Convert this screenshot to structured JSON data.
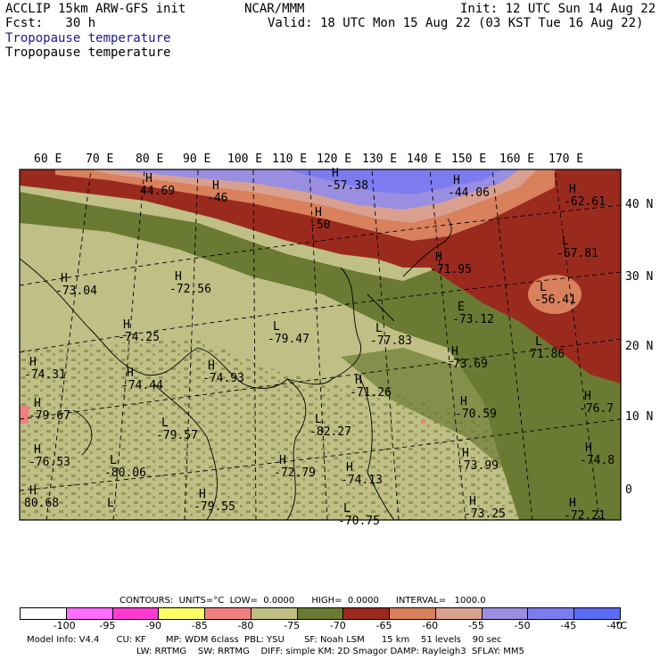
{
  "header": {
    "title": "ACCLIP 15km ARW-GFS init",
    "forecast": "Fcst:   30 h",
    "field_line1": "Tropopause temperature",
    "field_line2": "Tropopause temperature",
    "agency": "NCAR/MMM",
    "init": "Init: 12 UTC Sun 14 Aug 22",
    "valid": "Valid: 18 UTC Mon 15 Aug 22 (03 KST Tue 16 Aug 22)"
  },
  "lon_labels": [
    "60 E",
    "70 E",
    "80 E",
    "90 E",
    "100 E",
    "110 E",
    "120 E",
    "130 E",
    "140 E",
    "150 E",
    "160 E",
    "170 E"
  ],
  "lat_labels": [
    "40 N",
    "30 N",
    "20 N",
    "10 N",
    "0"
  ],
  "map_labels": [
    {
      "t": "H",
      "v": "44.69"
    },
    {
      "t": "H",
      "v": "-46"
    },
    {
      "t": "H",
      "v": "-57.38"
    },
    {
      "t": "H",
      "v": "-44.06"
    },
    {
      "t": "H",
      "v": "-62.61"
    },
    {
      "t": "H",
      "v": "-50"
    },
    {
      "t": "L",
      "v": "-67.81"
    },
    {
      "t": "H",
      "v": "-71.95"
    },
    {
      "t": "H",
      "v": "-73.04"
    },
    {
      "t": "H",
      "v": "-72.56"
    },
    {
      "t": "L",
      "v": "-56.41"
    },
    {
      "t": "L",
      "v": "-79.47"
    },
    {
      "t": "L",
      "v": "-77.83"
    },
    {
      "t": "E",
      "v": "-73.12"
    },
    {
      "t": "H",
      "v": "-74.25"
    },
    {
      "t": "H",
      "v": "-74.31"
    },
    {
      "t": "H",
      "v": "-73.69"
    },
    {
      "t": "L",
      "v": "71.86"
    },
    {
      "t": "H",
      "v": "-74.44"
    },
    {
      "t": "H",
      "v": "-74.93"
    },
    {
      "t": "H",
      "v": "-71.26"
    },
    {
      "t": "H",
      "v": "-76.7"
    },
    {
      "t": "H",
      "v": "-79.67"
    },
    {
      "t": "L",
      "v": "-79.57"
    },
    {
      "t": "L",
      "v": "-82.27"
    },
    {
      "t": "H",
      "v": "-70.59"
    },
    {
      "t": "H",
      "v": "-76.53"
    },
    {
      "t": "L",
      "v": "-80.06"
    },
    {
      "t": "H",
      "v": "-72.79"
    },
    {
      "t": "H",
      "v": "-74.13"
    },
    {
      "t": "H",
      "v": "-73.99"
    },
    {
      "t": "H",
      "v": "-74.8"
    },
    {
      "t": "H",
      "v": "80.68"
    },
    {
      "t": "H",
      "v": "-79.55"
    },
    {
      "t": "H",
      "v": "-73.25"
    },
    {
      "t": "H",
      "v": "-72.21"
    },
    {
      "t": "L",
      "v": "-70.75"
    },
    {
      "t": "L",
      "v": ""
    }
  ],
  "footer": {
    "contours": "CONTOURS:  UNITS=°C  LOW=  0.0000      HIGH=  0.0000      INTERVAL=   1000.0",
    "model_line1": "Model Info: V4.4      CU: KF       MP: WDM 6class  PBL: YSU       SF: Noah LSM      15 km    51 levels    90 sec",
    "model_line2": "LW: RRTMG    SW: RRTMG    DIFF: simple KM: 2D Smagor DAMP: Rayleigh3  SFLAY: MM5"
  },
  "colorbar": {
    "colors": [
      "#ffffff",
      "#ff6eff",
      "#ff3ad0",
      "#ffff66",
      "#f08080",
      "#bfbf86",
      "#6b7a32",
      "#9a2a1e",
      "#d9805c",
      "#d9a090",
      "#9a8ee0",
      "#7c7cf0",
      "#5c6cf5"
    ],
    "labels": [
      "-100",
      "-95",
      "-90",
      "-85",
      "-80",
      "-75",
      "-70",
      "-65",
      "-60",
      "-55",
      "-50",
      "-45",
      "-40",
      "°C"
    ]
  }
}
